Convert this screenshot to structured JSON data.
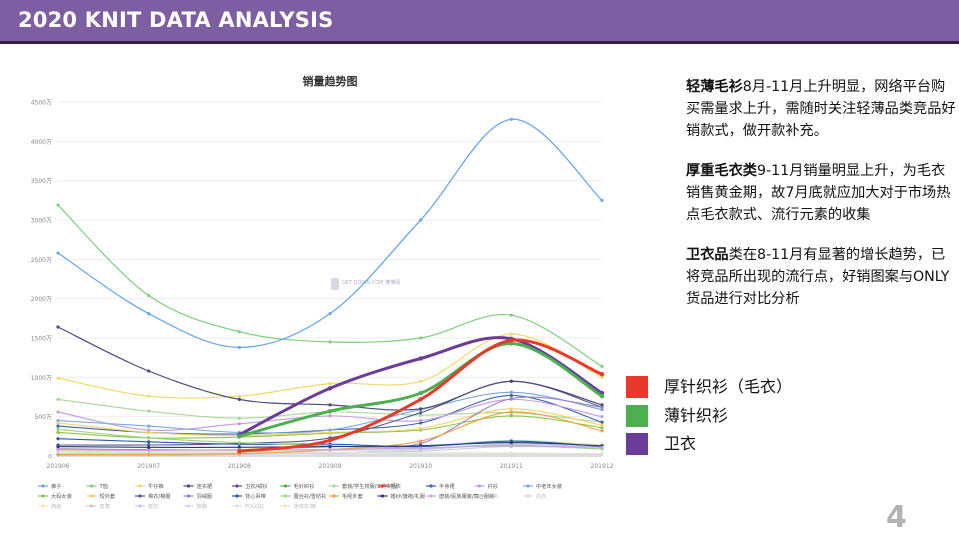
{
  "header": {
    "title": "2020 KNIT DATA ANALYSIS"
  },
  "page_number": "4",
  "notes": [
    {
      "bold": "轻薄毛衫",
      "text": "8月-11月上升明显，网络平台购买需量求上升，需随时关注轻薄品类竞品好销款式，做开款补充。"
    },
    {
      "bold": "厚重毛衣类",
      "text": "9-11月销量明显上升，为毛衣销售黄金期，故7月底就应加大对于市场热点毛衣款式、流行元素的收集"
    },
    {
      "bold": "卫衣品",
      "text": "类在8-11月有显著的增长趋势，已将竞品所出现的流行点，好销图案与ONLY货品进行对比分析"
    }
  ],
  "highlight_legend": [
    {
      "label": "厚针织衫（毛衣）",
      "color": "#e8392a"
    },
    {
      "label": "薄针织衫",
      "color": "#4caf50"
    },
    {
      "label": "卫衣",
      "color": "#6a3d9a"
    }
  ],
  "chart_data": {
    "type": "line",
    "title": "销量趋势图",
    "watermark": "GET DOWN.COM 懂懂网",
    "categories": [
      "201906",
      "201907",
      "201908",
      "201909",
      "201910",
      "201911",
      "201912"
    ],
    "ylim": [
      0,
      4500
    ],
    "yticks": [
      "0",
      "500万",
      "1000万",
      "1500万",
      "2000万",
      "2500万",
      "3000万",
      "3500万",
      "4000万",
      "4500万"
    ],
    "series": [
      {
        "name": "裤子",
        "color": "#6aa8e8",
        "width": 1.3,
        "values": [
          2580,
          1810,
          1380,
          1810,
          3000,
          4280,
          3250
        ]
      },
      {
        "name": "T恤",
        "color": "#7fce7f",
        "width": 1.2,
        "values": [
          3190,
          2040,
          1580,
          1450,
          1500,
          1790,
          1140
        ]
      },
      {
        "name": "牛仔裤",
        "color": "#f2d96a",
        "width": 1.2,
        "values": [
          990,
          760,
          760,
          920,
          950,
          1550,
          1000
        ]
      },
      {
        "name": "连衣裙",
        "color": "#4a4a7a",
        "width": 1.2,
        "values": [
          1640,
          1080,
          720,
          650,
          600,
          950,
          650
        ]
      },
      {
        "name": "卫衣/绒衫",
        "color": "#6a3d9a",
        "width": 3.0,
        "values": [
          null,
          null,
          270,
          860,
          1240,
          1490,
          800
        ]
      },
      {
        "name": "毛针织衫",
        "color": "#4caf50",
        "width": 3.0,
        "values": [
          null,
          null,
          250,
          570,
          800,
          1430,
          760
        ]
      },
      {
        "name": "套装/学生校服/工作制服",
        "color": "#a8d89a",
        "width": 1.1,
        "values": [
          720,
          570,
          480,
          560,
          520,
          550,
          430
        ]
      },
      {
        "name": "毛衣",
        "color": "#e8392a",
        "width": 3.0,
        "values": [
          null,
          null,
          60,
          200,
          720,
          1470,
          1040
        ]
      },
      {
        "name": "半身裙",
        "color": "#3f62a8",
        "width": 1.1,
        "values": [
          380,
          300,
          280,
          330,
          420,
          770,
          430
        ]
      },
      {
        "name": "衬衫",
        "color": "#c49ae0",
        "width": 1.1,
        "values": [
          560,
          330,
          410,
          510,
          450,
          720,
          500
        ]
      },
      {
        "name": "中老年女装",
        "color": "#7aa8d8",
        "width": 1.1,
        "values": [
          450,
          380,
          300,
          330,
          590,
          810,
          590
        ]
      },
      {
        "name": "大码女装",
        "color": "#8ac44a",
        "width": 1.1,
        "values": [
          300,
          230,
          240,
          290,
          330,
          510,
          360
        ]
      },
      {
        "name": "短外套",
        "color": "#f5d15a",
        "width": 1.1,
        "values": [
          420,
          300,
          260,
          300,
          350,
          600,
          390
        ]
      },
      {
        "name": "棉衣/棉服",
        "color": "#5a5a8a",
        "width": 1.1,
        "values": [
          140,
          140,
          160,
          230,
          550,
          950,
          620
        ]
      },
      {
        "name": "羽绒服",
        "color": "#9a82d0",
        "width": 1.1,
        "values": [
          90,
          80,
          80,
          120,
          160,
          730,
          620
        ]
      },
      {
        "name": "背心吊带",
        "color": "#2a5ab8",
        "width": 1.1,
        "values": [
          220,
          180,
          150,
          150,
          120,
          190,
          120
        ]
      },
      {
        "name": "蕾丝衫/雪纺衫",
        "color": "#9ad07a",
        "width": 1.1,
        "values": [
          340,
          230,
          170,
          130,
          100,
          140,
          90
        ]
      },
      {
        "name": "毛呢外套",
        "color": "#f0a040",
        "width": 1.1,
        "values": [
          20,
          20,
          30,
          80,
          190,
          560,
          320
        ]
      },
      {
        "name": "婚纱/旗袍/礼服",
        "color": "#1f3a80",
        "width": 1.1,
        "values": [
          120,
          110,
          110,
          120,
          130,
          170,
          130
        ]
      },
      {
        "name": "唐装/民族服装/舞台服装",
        "color": "#d0a0e0",
        "width": 1.1,
        "values": [
          80,
          70,
          80,
          80,
          100,
          130,
          110
        ]
      },
      {
        "name": "马夹",
        "color": "#c8daf0",
        "width": 1.0,
        "values": [
          60,
          50,
          60,
          70,
          90,
          160,
          130
        ]
      },
      {
        "name": "风衣",
        "color": "#c8e8c0",
        "width": 1.0,
        "values": [
          50,
          40,
          60,
          90,
          130,
          200,
          140
        ]
      },
      {
        "name": "西装",
        "color": "#f5ebb0",
        "width": 1.0,
        "values": [
          70,
          60,
          60,
          80,
          120,
          180,
          150
        ]
      },
      {
        "name": "皮草",
        "color": "#c8c8d8",
        "width": 1.0,
        "values": [
          10,
          10,
          20,
          30,
          60,
          120,
          90
        ]
      },
      {
        "name": "皮衣",
        "color": "#c8c8e0",
        "width": 1.0,
        "values": [
          20,
          20,
          20,
          40,
          80,
          150,
          110
        ]
      },
      {
        "name": "抹胸",
        "color": "#d0d8e8",
        "width": 1.0,
        "values": [
          30,
          30,
          30,
          20,
          20,
          20,
          20
        ]
      },
      {
        "name": "POLO衫",
        "color": "#d8e8d0",
        "width": 1.0,
        "values": [
          100,
          80,
          60,
          50,
          40,
          40,
          30
        ]
      },
      {
        "name": "连体衣/裤",
        "color": "#e8e0d0",
        "width": 1.0,
        "values": [
          60,
          50,
          40,
          40,
          30,
          30,
          30
        ]
      }
    ]
  }
}
